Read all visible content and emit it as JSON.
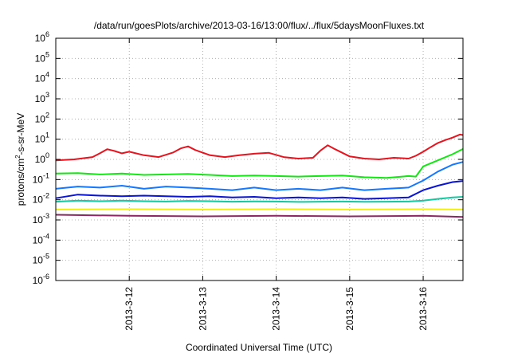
{
  "chart_data": {
    "type": "line",
    "title": "/data/run/goesPlots/archive/2013-03-16/13:00/flux/../flux/5daysMoonFluxes.txt",
    "xlabel": "Coordinated Universal Time (UTC)",
    "ylabel": {
      "pre": "protons/cm",
      "sup": "2",
      "post": "-s-sr-MeV"
    },
    "y_scale": "log",
    "ylim": [
      1e-06,
      1000000.0
    ],
    "y_ticks": [
      {
        "value": 1e-06,
        "base": "10",
        "exp": "-6"
      },
      {
        "value": 1e-05,
        "base": "10",
        "exp": "-5"
      },
      {
        "value": 0.0001,
        "base": "10",
        "exp": "-4"
      },
      {
        "value": 0.001,
        "base": "10",
        "exp": "-3"
      },
      {
        "value": 0.01,
        "base": "10",
        "exp": "-2"
      },
      {
        "value": 0.1,
        "base": "10",
        "exp": "-1"
      },
      {
        "value": 1,
        "base": "10",
        "exp": "0"
      },
      {
        "value": 10.0,
        "base": "10",
        "exp": "1"
      },
      {
        "value": 100.0,
        "base": "10",
        "exp": "2"
      },
      {
        "value": 1000.0,
        "base": "10",
        "exp": "3"
      },
      {
        "value": 10000.0,
        "base": "10",
        "exp": "4"
      },
      {
        "value": 100000.0,
        "base": "10",
        "exp": "5"
      },
      {
        "value": 1000000.0,
        "base": "10",
        "exp": "6"
      }
    ],
    "xlim": [
      "2013-03-11 00:00",
      "2013-03-16 13:00"
    ],
    "x_ticks": [
      {
        "value": "2013-03-12 00:00",
        "label": "2013-3-12"
      },
      {
        "value": "2013-03-13 00:00",
        "label": "2013-3-13"
      },
      {
        "value": "2013-03-14 00:00",
        "label": "2013-3-14"
      },
      {
        "value": "2013-03-15 00:00",
        "label": "2013-3-15"
      },
      {
        "value": "2013-03-16 00:00",
        "label": "2013-3-16"
      }
    ],
    "grid": true,
    "series": [
      {
        "color": "#e6141e",
        "x": [
          "2013-03-11 00:00",
          "2013-03-11 06:00",
          "2013-03-11 12:00",
          "2013-03-11 14:24",
          "2013-03-11 16:48",
          "2013-03-11 19:12",
          "2013-03-11 21:36",
          "2013-03-12 00:00",
          "2013-03-12 04:48",
          "2013-03-12 09:36",
          "2013-03-12 14:24",
          "2013-03-12 16:48",
          "2013-03-12 19:12",
          "2013-03-12 21:36",
          "2013-03-13 02:24",
          "2013-03-13 07:12",
          "2013-03-13 12:00",
          "2013-03-13 16:48",
          "2013-03-13 21:36",
          "2013-03-14 02:24",
          "2013-03-14 07:12",
          "2013-03-14 12:00",
          "2013-03-14 14:24",
          "2013-03-14 16:48",
          "2013-03-14 19:12",
          "2013-03-15 00:00",
          "2013-03-15 04:48",
          "2013-03-15 09:36",
          "2013-03-15 14:24",
          "2013-03-15 19:12",
          "2013-03-15 21:36",
          "2013-03-16 00:00",
          "2013-03-16 02:24",
          "2013-03-16 04:48",
          "2013-03-16 07:12",
          "2013-03-16 09:36",
          "2013-03-16 12:00",
          "2013-03-16 13:00"
        ],
        "y": [
          0.9,
          1.0,
          1.3,
          2.0,
          3.2,
          2.6,
          2.0,
          2.4,
          1.6,
          1.3,
          2.2,
          3.5,
          4.4,
          2.9,
          1.6,
          1.3,
          1.6,
          1.9,
          2.1,
          1.3,
          1.1,
          1.2,
          2.7,
          5.0,
          3.2,
          1.4,
          1.1,
          1.0,
          1.2,
          1.1,
          1.5,
          2.4,
          4.0,
          6.5,
          9.0,
          12,
          17,
          16
        ]
      },
      {
        "color": "#14e614",
        "x": [
          "2013-03-11 00:00",
          "2013-03-11 07:12",
          "2013-03-11 14:24",
          "2013-03-11 21:36",
          "2013-03-12 04:48",
          "2013-03-12 12:00",
          "2013-03-12 19:12",
          "2013-03-13 02:24",
          "2013-03-13 09:36",
          "2013-03-13 16:48",
          "2013-03-14 00:00",
          "2013-03-14 07:12",
          "2013-03-14 14:24",
          "2013-03-14 21:36",
          "2013-03-15 04:48",
          "2013-03-15 12:00",
          "2013-03-15 19:12",
          "2013-03-15 21:36",
          "2013-03-16 00:00",
          "2013-03-16 04:48",
          "2013-03-16 09:36",
          "2013-03-16 13:00"
        ],
        "y": [
          0.2,
          0.21,
          0.18,
          0.2,
          0.17,
          0.18,
          0.19,
          0.17,
          0.15,
          0.16,
          0.15,
          0.14,
          0.15,
          0.16,
          0.13,
          0.12,
          0.15,
          0.14,
          0.45,
          0.9,
          1.8,
          3.3
        ]
      },
      {
        "color": "#1478ff",
        "x": [
          "2013-03-11 00:00",
          "2013-03-11 07:12",
          "2013-03-11 14:24",
          "2013-03-11 21:36",
          "2013-03-12 04:48",
          "2013-03-12 12:00",
          "2013-03-12 19:12",
          "2013-03-13 02:24",
          "2013-03-13 09:36",
          "2013-03-13 16:48",
          "2013-03-14 00:00",
          "2013-03-14 07:12",
          "2013-03-14 14:24",
          "2013-03-14 21:36",
          "2013-03-15 04:48",
          "2013-03-15 12:00",
          "2013-03-15 19:12",
          "2013-03-16 00:00",
          "2013-03-16 04:48",
          "2013-03-16 09:36",
          "2013-03-16 13:00"
        ],
        "y": [
          0.035,
          0.045,
          0.04,
          0.05,
          0.035,
          0.045,
          0.04,
          0.035,
          0.03,
          0.04,
          0.03,
          0.035,
          0.03,
          0.04,
          0.03,
          0.035,
          0.04,
          0.09,
          0.25,
          0.55,
          0.75
        ]
      },
      {
        "color": "#0a14d2",
        "x": [
          "2013-03-11 00:00",
          "2013-03-11 07:12",
          "2013-03-11 14:24",
          "2013-03-11 21:36",
          "2013-03-12 04:48",
          "2013-03-12 12:00",
          "2013-03-12 19:12",
          "2013-03-13 02:24",
          "2013-03-13 09:36",
          "2013-03-13 16:48",
          "2013-03-14 00:00",
          "2013-03-14 07:12",
          "2013-03-14 14:24",
          "2013-03-14 21:36",
          "2013-03-15 04:48",
          "2013-03-15 12:00",
          "2013-03-15 19:12",
          "2013-03-16 00:00",
          "2013-03-16 04:48",
          "2013-03-16 09:36",
          "2013-03-16 13:00"
        ],
        "y": [
          0.012,
          0.018,
          0.016,
          0.015,
          0.016,
          0.015,
          0.014,
          0.015,
          0.013,
          0.014,
          0.012,
          0.013,
          0.012,
          0.013,
          0.011,
          0.012,
          0.013,
          0.03,
          0.05,
          0.075,
          0.085
        ]
      },
      {
        "color": "#14c8a0",
        "x": [
          "2013-03-11 00:00",
          "2013-03-11 07:12",
          "2013-03-11 14:24",
          "2013-03-11 21:36",
          "2013-03-12 04:48",
          "2013-03-12 12:00",
          "2013-03-12 19:12",
          "2013-03-13 02:24",
          "2013-03-13 09:36",
          "2013-03-13 16:48",
          "2013-03-14 00:00",
          "2013-03-14 07:12",
          "2013-03-14 14:24",
          "2013-03-14 21:36",
          "2013-03-15 04:48",
          "2013-03-15 12:00",
          "2013-03-15 19:12",
          "2013-03-16 00:00",
          "2013-03-16 04:48",
          "2013-03-16 09:36",
          "2013-03-16 13:00"
        ],
        "y": [
          0.008,
          0.009,
          0.0085,
          0.009,
          0.0085,
          0.0082,
          0.0088,
          0.0085,
          0.008,
          0.0083,
          0.0082,
          0.0078,
          0.008,
          0.0082,
          0.0079,
          0.008,
          0.0082,
          0.009,
          0.011,
          0.013,
          0.014
        ]
      },
      {
        "color": "#f0f014",
        "x": [
          "2013-03-11 00:00",
          "2013-03-12 00:00",
          "2013-03-13 00:00",
          "2013-03-14 00:00",
          "2013-03-15 00:00",
          "2013-03-16 00:00",
          "2013-03-16 13:00"
        ],
        "y": [
          0.0033,
          0.0034,
          0.0033,
          0.0034,
          0.0033,
          0.0034,
          0.0033
        ]
      },
      {
        "color": "#8c2864",
        "x": [
          "2013-03-11 00:00",
          "2013-03-12 00:00",
          "2013-03-13 00:00",
          "2013-03-14 00:00",
          "2013-03-15 00:00",
          "2013-03-16 00:00",
          "2013-03-16 13:00"
        ],
        "y": [
          0.0018,
          0.0016,
          0.0015,
          0.0016,
          0.0015,
          0.0016,
          0.0014
        ]
      }
    ]
  }
}
